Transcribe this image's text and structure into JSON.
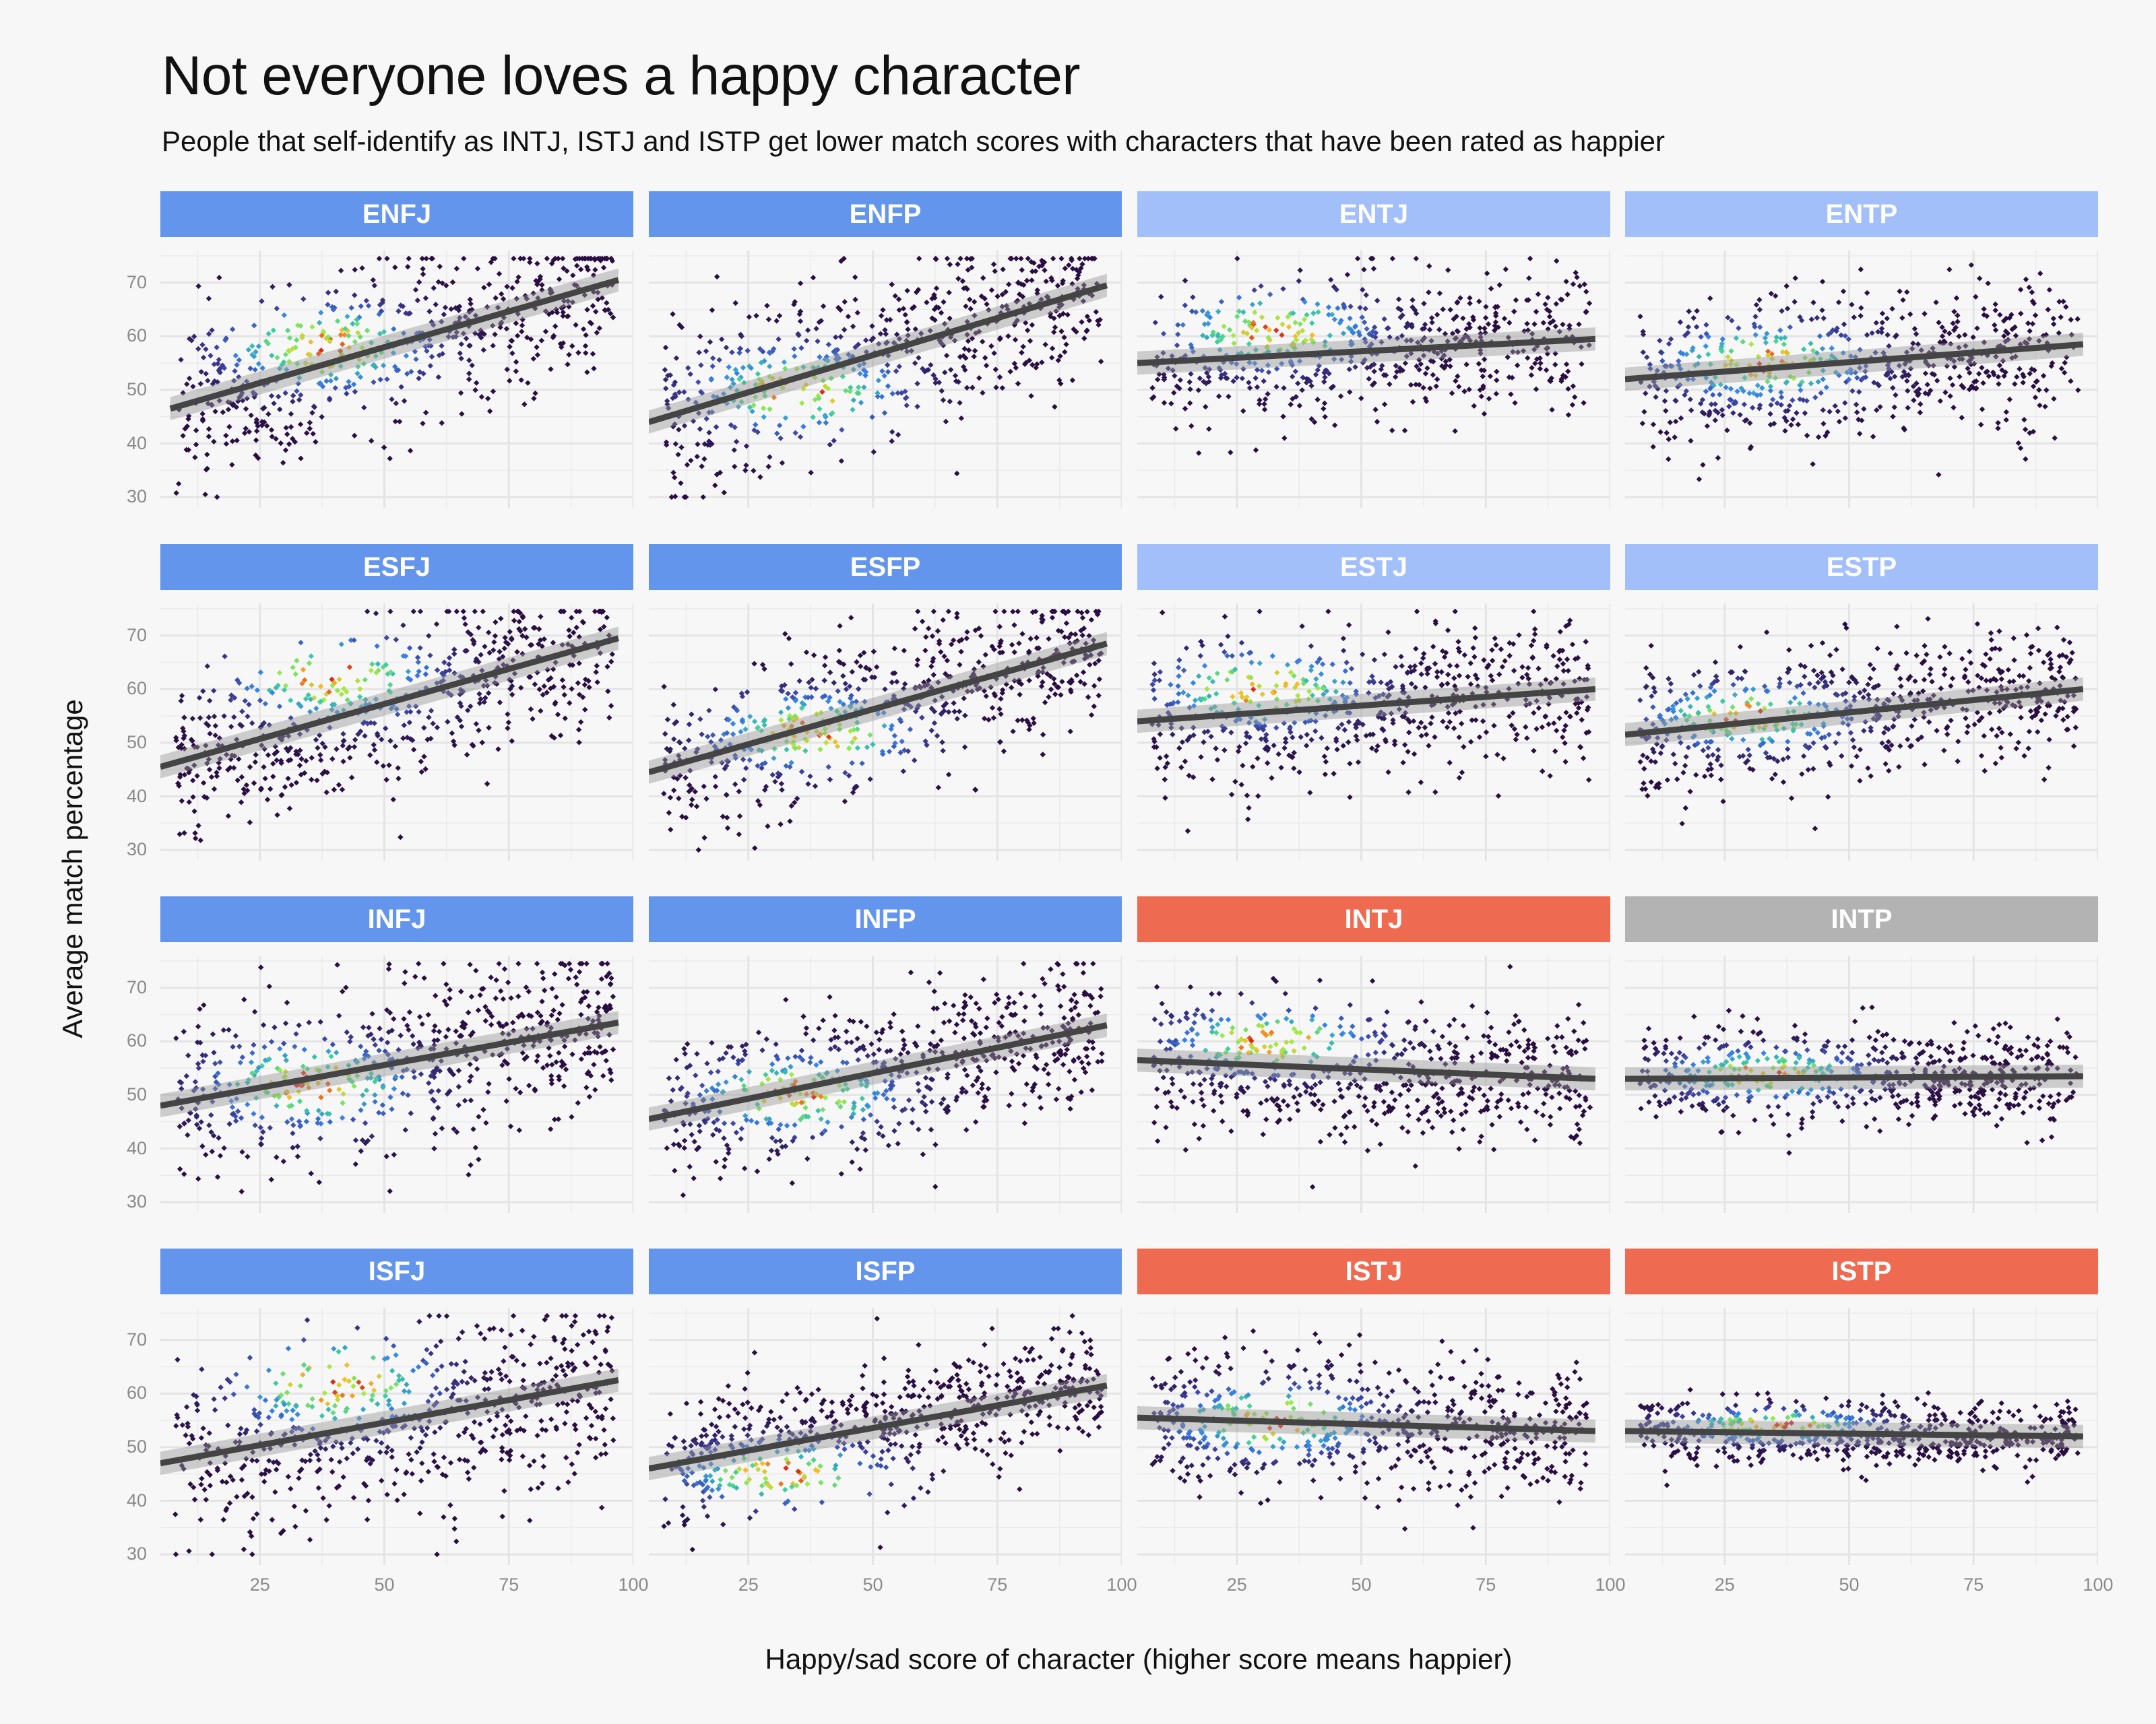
{
  "title": "Not everyone loves a happy character",
  "subtitle": "People that self-identify as INTJ, ISTJ and ISTP get lower match scores with characters that have been rated as happier",
  "colors": {
    "background": "#f7f7f7",
    "strip_positive": "#6495ed",
    "strip_weak": "#a3bffa",
    "strip_negative": "#ee6a50",
    "strip_flat": "#b3b3b3",
    "trend_line": "#444444",
    "gridline": "#ebebeb"
  },
  "chart_data": {
    "type": "scatter",
    "title": "Not everyone loves a happy character",
    "subtitle": "People that self-identify as INTJ, ISTJ and ISTP get lower match scores with characters that have been rated as happier",
    "xlabel": "Happy/sad score of character (higher score means happier)",
    "ylabel": "Average match percentage",
    "xlim": [
      5,
      100
    ],
    "ylim": [
      28,
      76
    ],
    "x_ticks": [
      25,
      50,
      75,
      100
    ],
    "y_ticks": [
      30,
      40,
      50,
      60,
      70
    ],
    "grid": true,
    "legend": "none",
    "color_scale": "point density (dark purple low, blue, green, yellow, red high)",
    "point_marker": "small diamond",
    "facets": [
      {
        "name": "ENFJ",
        "group": "positive",
        "trend": {
          "x": [
            7,
            97
          ],
          "y": [
            46.5,
            70.5
          ]
        },
        "spread": 8,
        "density_center": [
          38,
          58
        ]
      },
      {
        "name": "ENFP",
        "group": "positive",
        "trend": {
          "x": [
            5,
            97
          ],
          "y": [
            44,
            69.5
          ]
        },
        "spread": 8,
        "density_center": [
          35,
          50
        ]
      },
      {
        "name": "ENTJ",
        "group": "weak",
        "trend": {
          "x": [
            5,
            97
          ],
          "y": [
            55,
            59.5
          ]
        },
        "spread": 7,
        "density_center": [
          32,
          61
        ]
      },
      {
        "name": "ENTP",
        "group": "weak",
        "trend": {
          "x": [
            5,
            97
          ],
          "y": [
            52,
            58.5
          ]
        },
        "spread": 7,
        "density_center": [
          33,
          55
        ]
      },
      {
        "name": "ESFJ",
        "group": "positive",
        "trend": {
          "x": [
            5,
            97
          ],
          "y": [
            45.5,
            69.5
          ]
        },
        "spread": 8,
        "density_center": [
          40,
          62
        ]
      },
      {
        "name": "ESFP",
        "group": "positive",
        "trend": {
          "x": [
            5,
            97
          ],
          "y": [
            44.5,
            68.5
          ]
        },
        "spread": 7,
        "density_center": [
          38,
          52
        ]
      },
      {
        "name": "ESTJ",
        "group": "weak",
        "trend": {
          "x": [
            5,
            97
          ],
          "y": [
            54,
            60
          ]
        },
        "spread": 7,
        "density_center": [
          30,
          60
        ]
      },
      {
        "name": "ESTP",
        "group": "weak",
        "trend": {
          "x": [
            5,
            97
          ],
          "y": [
            51.5,
            60
          ]
        },
        "spread": 6,
        "density_center": [
          30,
          55
        ]
      },
      {
        "name": "INFJ",
        "group": "positive",
        "trend": {
          "x": [
            5,
            97
          ],
          "y": [
            48,
            63.5
          ]
        },
        "spread": 8,
        "density_center": [
          35,
          52
        ]
      },
      {
        "name": "INFP",
        "group": "positive",
        "trend": {
          "x": [
            5,
            97
          ],
          "y": [
            45.5,
            63
          ]
        },
        "spread": 7,
        "density_center": [
          35,
          50
        ]
      },
      {
        "name": "INTJ",
        "group": "negative",
        "trend": {
          "x": [
            5,
            97
          ],
          "y": [
            56.5,
            53
          ]
        },
        "spread": 6,
        "density_center": [
          32,
          60
        ]
      },
      {
        "name": "INTP",
        "group": "flat",
        "trend": {
          "x": [
            5,
            97
          ],
          "y": [
            53,
            53.5
          ]
        },
        "spread": 4.5,
        "density_center": [
          33,
          54
        ]
      },
      {
        "name": "ISFJ",
        "group": "positive",
        "trend": {
          "x": [
            5,
            97
          ],
          "y": [
            47,
            62.5
          ]
        },
        "spread": 9,
        "density_center": [
          40,
          62
        ]
      },
      {
        "name": "ISFP",
        "group": "positive",
        "trend": {
          "x": [
            5,
            97
          ],
          "y": [
            46,
            61.5
          ]
        },
        "spread": 6,
        "density_center": [
          32,
          45
        ]
      },
      {
        "name": "ISTJ",
        "group": "negative",
        "trend": {
          "x": [
            5,
            97
          ],
          "y": [
            55.5,
            53
          ]
        },
        "spread": 6.5,
        "density_center": [
          32,
          55
        ]
      },
      {
        "name": "ISTP",
        "group": "negative",
        "trend": {
          "x": [
            5,
            97
          ],
          "y": [
            53,
            52
          ]
        },
        "spread": 3,
        "density_center": [
          35,
          54
        ]
      }
    ]
  }
}
